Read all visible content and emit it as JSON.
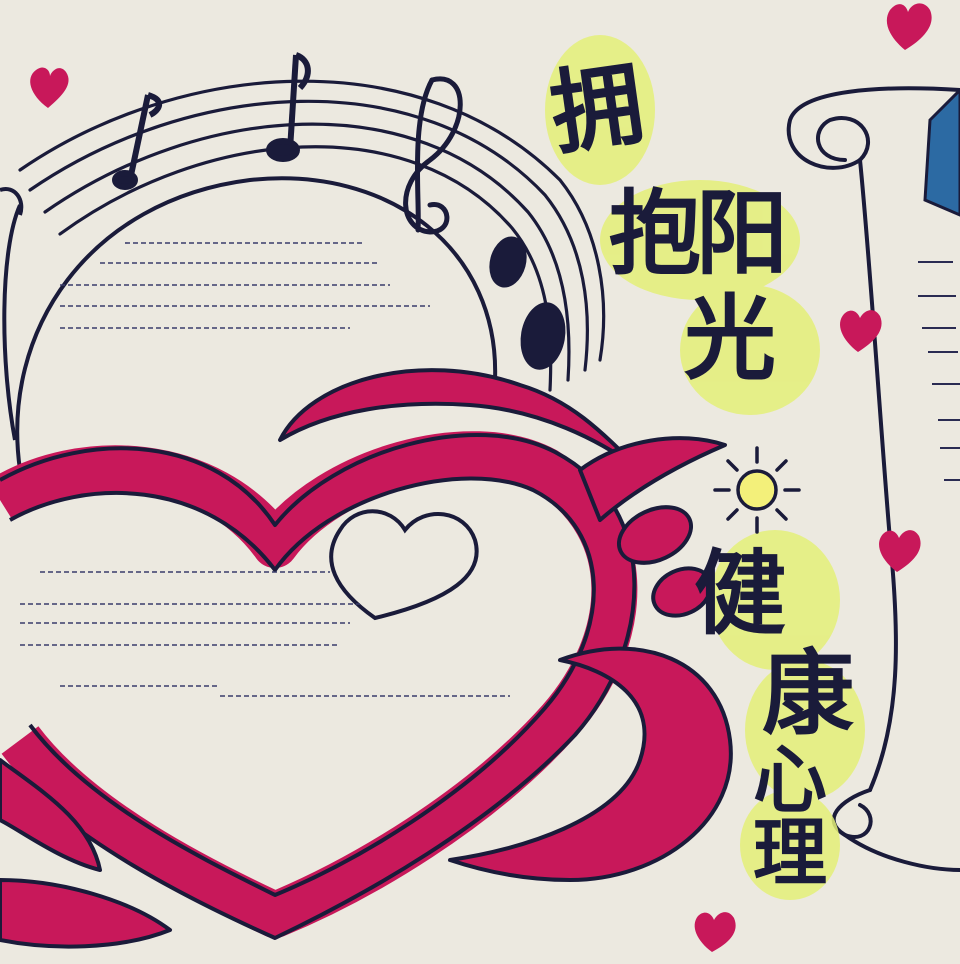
{
  "title_chars": [
    "拥",
    "抱",
    "阳",
    "光",
    "健",
    "康",
    "心",
    "理"
  ],
  "colors": {
    "paper": "#ece9e0",
    "ink": "#1a1b3a",
    "magenta": "#c8185a",
    "highlight": "#e4f078",
    "sun_yellow": "#f3f07a",
    "blue_corner": "#2c6aa3"
  },
  "icons": {
    "notes": [
      "sixteenth-note-icon",
      "eighth-note-icon",
      "treble-clef-icon",
      "whole-note-icon",
      "whole-note-icon"
    ],
    "sun": "sun-icon",
    "hearts": "heart-icon"
  }
}
